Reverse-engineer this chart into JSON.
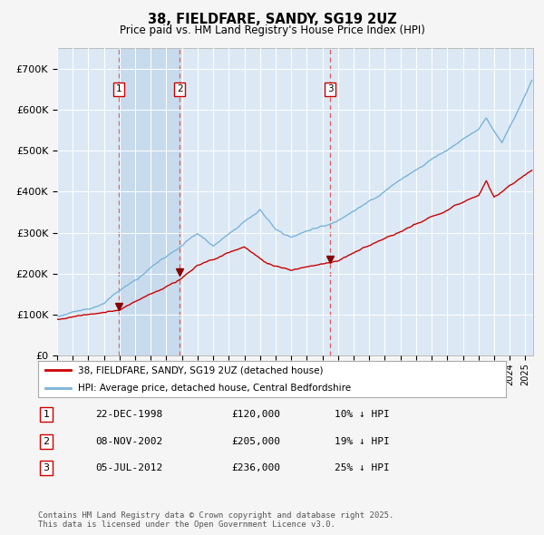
{
  "title": "38, FIELDFARE, SANDY, SG19 2UZ",
  "subtitle": "Price paid vs. HM Land Registry's House Price Index (HPI)",
  "bg_color": "#f5f5f5",
  "plot_bg_color": "#dce9f5",
  "grid_color": "#ffffff",
  "red_line_color": "#cc0000",
  "blue_line_color": "#7ab4d8",
  "sale_marker_color": "#880000",
  "dashed_line_color": "#dd4444",
  "ylim": [
    0,
    750000
  ],
  "yticks": [
    0,
    100000,
    200000,
    300000,
    400000,
    500000,
    600000,
    700000
  ],
  "ytick_labels": [
    "£0",
    "£100K",
    "£200K",
    "£300K",
    "£400K",
    "£500K",
    "£600K",
    "£700K"
  ],
  "sale_events": [
    {
      "num": 1,
      "date": "22-DEC-1998",
      "year": 1998.97,
      "price": 120000,
      "pct": "10%"
    },
    {
      "num": 2,
      "date": "08-NOV-2002",
      "year": 2002.86,
      "price": 205000,
      "pct": "19%"
    },
    {
      "num": 3,
      "date": "05-JUL-2012",
      "year": 2012.51,
      "price": 236000,
      "pct": "25%"
    }
  ],
  "legend_red": "38, FIELDFARE, SANDY, SG19 2UZ (detached house)",
  "legend_blue": "HPI: Average price, detached house, Central Bedfordshire",
  "footnote": "Contains HM Land Registry data © Crown copyright and database right 2025.\nThis data is licensed under the Open Government Licence v3.0.",
  "table_rows": [
    [
      "1",
      "22-DEC-1998",
      "£120,000",
      "10% ↓ HPI"
    ],
    [
      "2",
      "08-NOV-2002",
      "£205,000",
      "19% ↓ HPI"
    ],
    [
      "3",
      "05-JUL-2012",
      "£236,000",
      "25% ↓ HPI"
    ]
  ]
}
